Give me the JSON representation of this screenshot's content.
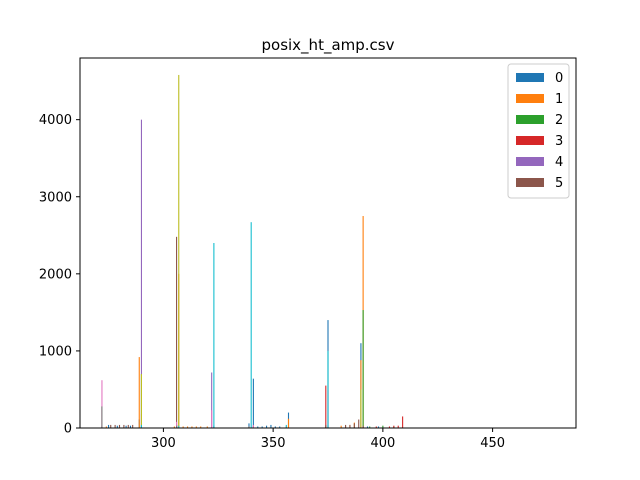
{
  "chart_data": {
    "type": "bar",
    "title": "posix_ht_amp.csv",
    "xlabel": "",
    "ylabel": "",
    "xlim": [
      262,
      488
    ],
    "ylim": [
      0,
      4800
    ],
    "xticks": [
      300,
      350,
      400,
      450
    ],
    "yticks": [
      0,
      1000,
      2000,
      3000,
      4000
    ],
    "grid": false,
    "legend": {
      "placement": "top-right",
      "entries": [
        "0",
        "1",
        "2",
        "3",
        "4",
        "5"
      ]
    },
    "series": [
      {
        "name": "0",
        "color": "#1f77b4",
        "x": [
          275,
          279,
          283,
          285,
          289,
          306,
          323,
          339,
          341,
          343,
          345,
          347,
          349,
          351,
          353,
          357,
          375,
          390,
          393,
          398
        ],
        "values": [
          40,
          30,
          30,
          30,
          110,
          40,
          30,
          60,
          640,
          20,
          20,
          30,
          40,
          20,
          20,
          200,
          1400,
          1100,
          20,
          20
        ]
      },
      {
        "name": "1",
        "color": "#ff7f0e",
        "x": [
          274,
          289,
          305,
          307,
          309,
          311,
          313,
          315,
          317,
          320,
          356,
          357,
          375,
          381,
          383,
          385,
          387,
          390,
          391
        ],
        "values": [
          20,
          920,
          20,
          2000,
          20,
          20,
          20,
          20,
          20,
          20,
          20,
          120,
          20,
          30,
          30,
          40,
          70,
          880,
          2750
        ]
      },
      {
        "name": "2",
        "color": "#2ca02c",
        "x": [
          290,
          374,
          391,
          394,
          400,
          405
        ],
        "values": [
          700,
          20,
          1530,
          20,
          30,
          20
        ]
      },
      {
        "name": "3",
        "color": "#d62728",
        "x": [
          306,
          374,
          397,
          403,
          405,
          407,
          409
        ],
        "values": [
          30,
          550,
          20,
          20,
          30,
          30,
          150
        ]
      },
      {
        "name": "4",
        "color": "#9467bd",
        "x": [
          272,
          290,
          306,
          322,
          375
        ],
        "values": [
          30,
          4000,
          30,
          720,
          40
        ]
      },
      {
        "name": "5",
        "color": "#8c564b",
        "x": [
          272,
          276,
          278,
          280,
          282,
          284,
          286,
          306,
          339,
          341,
          374,
          383,
          385,
          387,
          389,
          391
        ],
        "values": [
          280,
          40,
          40,
          40,
          40,
          40,
          40,
          2480,
          20,
          20,
          40,
          40,
          40,
          60,
          110,
          30
        ]
      },
      {
        "name": "",
        "color": "#e377c2",
        "x": [
          272,
          290,
          306,
          322,
          341,
          375
        ],
        "values": [
          620,
          180,
          80,
          230,
          40,
          490
        ]
      },
      {
        "name": "",
        "color": "#7f7f7f",
        "x": [
          272,
          306,
          339
        ],
        "values": [
          280,
          30,
          20
        ]
      },
      {
        "name": "",
        "color": "#bcbd22",
        "x": [
          290,
          307,
          390
        ],
        "values": [
          700,
          4580,
          500
        ]
      },
      {
        "name": "",
        "color": "#17becf",
        "x": [
          290,
          307,
          323,
          340,
          356,
          375
        ],
        "values": [
          40,
          30,
          2400,
          2670,
          40,
          1000
        ]
      }
    ]
  }
}
